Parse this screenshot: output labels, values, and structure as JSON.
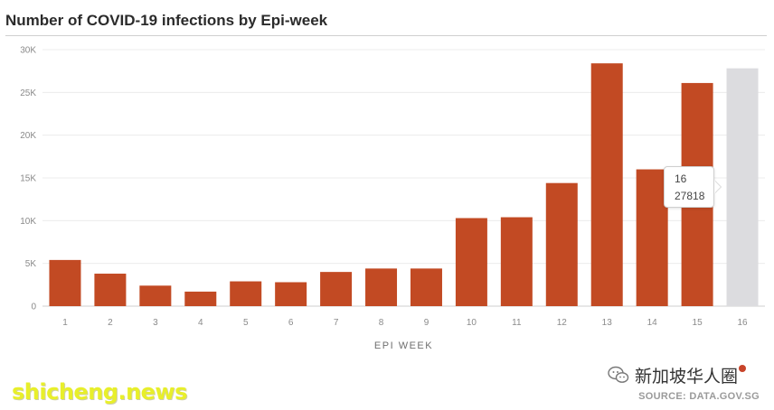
{
  "title": "Number of COVID-19 infections by Epi-week",
  "chart_data": {
    "type": "bar",
    "title": "Number of COVID-19 infections by Epi-week",
    "xlabel": "EPI WEEK",
    "ylabel": "",
    "ylim": [
      0,
      30000
    ],
    "y_ticks": [
      0,
      5000,
      10000,
      15000,
      20000,
      25000,
      30000
    ],
    "y_tick_labels": [
      "0",
      "5K",
      "10K",
      "15K",
      "20K",
      "25K",
      "30K"
    ],
    "categories": [
      "1",
      "2",
      "3",
      "4",
      "5",
      "6",
      "7",
      "8",
      "9",
      "10",
      "11",
      "12",
      "13",
      "14",
      "15",
      "16"
    ],
    "values": [
      5400,
      3800,
      2400,
      1700,
      2900,
      2800,
      4000,
      4400,
      4400,
      10300,
      10400,
      14400,
      28400,
      16000,
      26100,
      27818
    ],
    "highlighted_index": 15,
    "grid": true,
    "bar_color": "#c24a23",
    "highlight_color": "#dcdcdf"
  },
  "tooltip": {
    "week": "16",
    "value": "27818"
  },
  "watermark": "shicheng.news",
  "brand": "新加坡华人圈",
  "source": "SOURCE: DATA.GOV.SG"
}
